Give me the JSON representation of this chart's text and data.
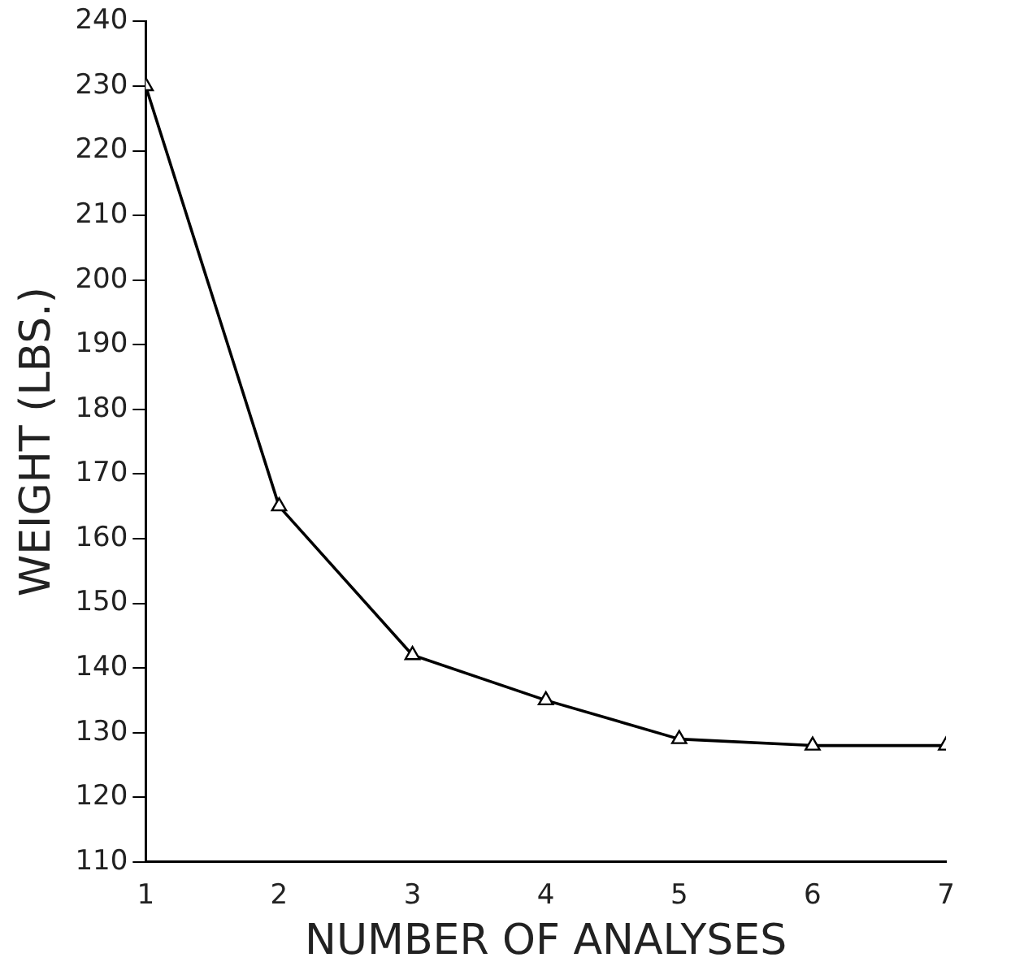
{
  "chart_data": {
    "type": "line",
    "xlabel": "NUMBER OF ANALYSES",
    "ylabel": "WEIGHT (LBS.)",
    "x": [
      1,
      2,
      3,
      4,
      5,
      6,
      7
    ],
    "series": [
      {
        "color": "#000000",
        "values": [
          230,
          165,
          142,
          135,
          129,
          128,
          128
        ]
      }
    ],
    "xlim": [
      1,
      7
    ],
    "xticks": [
      1,
      2,
      3,
      4,
      5,
      6,
      7
    ],
    "ylim": [
      110,
      240
    ],
    "yticks": [
      110,
      120,
      130,
      140,
      150,
      160,
      170,
      180,
      190,
      200,
      210,
      220,
      230,
      240
    ],
    "grid": false,
    "legend": false,
    "marker": "triangle",
    "line_style": "solid"
  }
}
